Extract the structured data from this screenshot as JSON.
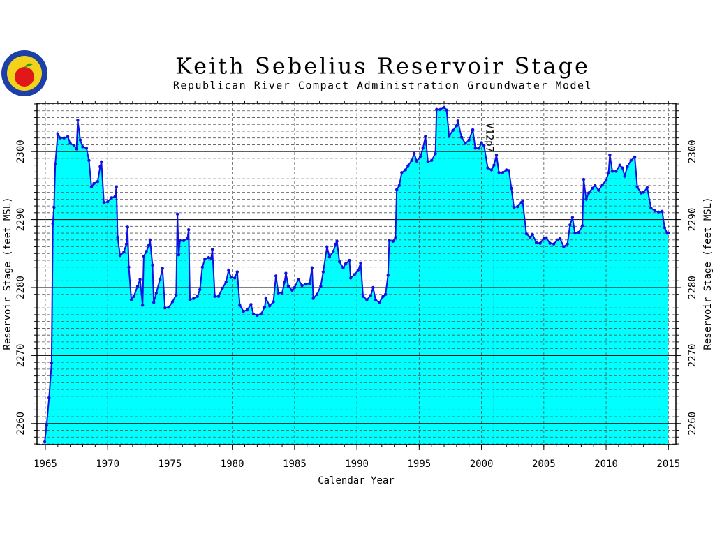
{
  "chart_data": {
    "type": "area",
    "title": "Keith Sebelius Reservoir Stage",
    "subtitle": "Republican River Compact Administration Groundwater Model",
    "x_label": "Calendar Year",
    "y_label": "Reservoir Stage (feet MSL)",
    "y2_label": "Reservoir Stage (feet MSL)",
    "xlim": [
      1964.33,
      2015.6
    ],
    "ylim": [
      2256.9,
      2307.1
    ],
    "y2lim": [
      2256.9,
      2307.1
    ],
    "xticks": [
      1965,
      1970,
      1975,
      1980,
      1985,
      1990,
      1995,
      2000,
      2005,
      2010,
      2015
    ],
    "yticks": [
      2260,
      2270,
      2280,
      2290,
      2300
    ],
    "y2ticks": [
      2260,
      2270,
      2280,
      2290,
      2300
    ],
    "x_minor_step": 1,
    "y_minor_step": 1,
    "grid": true,
    "vline": {
      "x": 2001,
      "label": "V12p7"
    },
    "series": [
      {
        "color": "#1010e0",
        "fill": "#00ffff",
        "x": [
          1964.95,
          1965.1,
          1965.3,
          1965.5,
          1965.6,
          1965.7,
          1965.8,
          1966.0,
          1966.2,
          1966.5,
          1966.8,
          1967.0,
          1967.3,
          1967.5,
          1967.6,
          1967.8,
          1968.0,
          1968.3,
          1968.5,
          1968.7,
          1968.9,
          1969.2,
          1969.4,
          1969.5,
          1969.7,
          1970.0,
          1970.3,
          1970.6,
          1970.7,
          1970.8,
          1971.0,
          1971.3,
          1971.5,
          1971.6,
          1971.7,
          1971.9,
          1972.1,
          1972.4,
          1972.6,
          1972.8,
          1972.9,
          1973.1,
          1973.3,
          1973.4,
          1973.6,
          1973.7,
          1973.9,
          1974.2,
          1974.4,
          1974.6,
          1974.9,
          1975.2,
          1975.5,
          1975.6,
          1975.7,
          1975.8,
          1976.1,
          1976.4,
          1976.5,
          1976.6,
          1976.9,
          1977.2,
          1977.4,
          1977.6,
          1977.8,
          1978.1,
          1978.3,
          1978.4,
          1978.6,
          1978.9,
          1979.2,
          1979.5,
          1979.7,
          1979.9,
          1980.2,
          1980.4,
          1980.6,
          1980.9,
          1981.2,
          1981.5,
          1981.7,
          1982.0,
          1982.3,
          1982.6,
          1982.7,
          1983.0,
          1983.3,
          1983.5,
          1983.7,
          1984.0,
          1984.2,
          1984.3,
          1984.5,
          1984.8,
          1985.0,
          1985.3,
          1985.6,
          1985.9,
          1986.2,
          1986.4,
          1986.5,
          1986.8,
          1987.1,
          1987.3,
          1987.6,
          1987.8,
          1988.1,
          1988.3,
          1988.4,
          1988.6,
          1988.9,
          1989.1,
          1989.4,
          1989.5,
          1989.8,
          1990.1,
          1990.3,
          1990.5,
          1990.8,
          1991.1,
          1991.3,
          1991.5,
          1991.8,
          1992.1,
          1992.3,
          1992.5,
          1992.6,
          1992.9,
          1993.1,
          1993.2,
          1993.4,
          1993.6,
          1993.9,
          1994.1,
          1994.4,
          1994.6,
          1994.8,
          1995.1,
          1995.3,
          1995.5,
          1995.7,
          1996.0,
          1996.3,
          1996.4,
          1996.7,
          1997.0,
          1997.2,
          1997.4,
          1997.7,
          1998.0,
          1998.1,
          1998.4,
          1998.7,
          1999.0,
          1999.3,
          1999.5,
          1999.8,
          2000.0,
          2000.2,
          2000.5,
          2000.8,
          2001.0,
          2001.2,
          2001.4,
          2001.7,
          2002.0,
          2002.2,
          2002.4,
          2002.6,
          2002.9,
          2003.2,
          2003.3,
          2003.6,
          2003.9,
          2004.1,
          2004.4,
          2004.7,
          2005.0,
          2005.2,
          2005.5,
          2005.8,
          2006.1,
          2006.3,
          2006.6,
          2006.9,
          2007.1,
          2007.3,
          2007.5,
          2007.8,
          2008.1,
          2008.2,
          2008.4,
          2008.6,
          2008.9,
          2009.1,
          2009.4,
          2009.7,
          2010.0,
          2010.2,
          2010.3,
          2010.5,
          2010.8,
          2011.1,
          2011.3,
          2011.5,
          2011.7,
          2012.0,
          2012.3,
          2012.5,
          2012.8,
          2013.0,
          2013.3,
          2013.6,
          2013.9,
          2014.2,
          2014.5,
          2014.7,
          2014.9,
          2015.0
        ],
        "values": [
          2257.3,
          2259.7,
          2263.8,
          2268.9,
          2289.4,
          2291.8,
          2298.2,
          2302.6,
          2302,
          2302,
          2302.2,
          2301.2,
          2300.9,
          2300.4,
          2304.6,
          2301.7,
          2300.7,
          2300.5,
          2298.7,
          2294.8,
          2295.3,
          2295.6,
          2297.8,
          2298.5,
          2292.5,
          2292.6,
          2293.2,
          2293.4,
          2294.8,
          2287.4,
          2284.7,
          2285.2,
          2286.4,
          2288.9,
          2283,
          2278.2,
          2278.7,
          2280.2,
          2281.2,
          2277.4,
          2284.6,
          2285.3,
          2286.2,
          2287,
          2283.3,
          2277.8,
          2279.2,
          2281.2,
          2282.8,
          2277,
          2277.1,
          2277.9,
          2278.9,
          2290.8,
          2284.8,
          2286.9,
          2286.9,
          2287.2,
          2288.5,
          2278.2,
          2278.4,
          2278.7,
          2279.7,
          2283,
          2284.2,
          2284.4,
          2284.3,
          2285.6,
          2278.7,
          2278.7,
          2279.9,
          2280.8,
          2282.5,
          2281.5,
          2281.4,
          2282.3,
          2277.4,
          2276.5,
          2276.7,
          2277.5,
          2276.1,
          2275.9,
          2276.1,
          2277.1,
          2278.4,
          2277.3,
          2277.9,
          2281.7,
          2279.2,
          2279.2,
          2280.8,
          2282.1,
          2280.2,
          2279.6,
          2280,
          2281.2,
          2280.3,
          2280.5,
          2280.6,
          2282.9,
          2278.4,
          2279,
          2280.2,
          2282.3,
          2286,
          2284.5,
          2285.3,
          2286.4,
          2286.8,
          2283.8,
          2282.9,
          2283.5,
          2284,
          2281.4,
          2281.9,
          2282.5,
          2283.6,
          2278.7,
          2278.2,
          2278.8,
          2280,
          2278.2,
          2277.8,
          2278.7,
          2279,
          2281.8,
          2286.9,
          2286.8,
          2287.4,
          2294.4,
          2295,
          2296.9,
          2297.3,
          2297.9,
          2298.7,
          2299.7,
          2298.6,
          2299.3,
          2300.5,
          2302.2,
          2298.5,
          2298.7,
          2299.7,
          2306.2,
          2306.2,
          2306.5,
          2306.1,
          2302.3,
          2303.1,
          2303.8,
          2304.5,
          2302.1,
          2301.2,
          2301.7,
          2303.2,
          2300.5,
          2300.5,
          2301.3,
          2300.9,
          2297.6,
          2297.3,
          2298,
          2299.5,
          2296.9,
          2296.9,
          2297.3,
          2297.2,
          2294.6,
          2291.8,
          2291.9,
          2292.5,
          2292.7,
          2287.9,
          2287.4,
          2287.8,
          2286.6,
          2286.5,
          2287.2,
          2287.3,
          2286.5,
          2286.4,
          2287,
          2287.2,
          2286,
          2286.4,
          2289.2,
          2290.3,
          2288,
          2288.1,
          2289.1,
          2295.9,
          2293,
          2293.9,
          2294.6,
          2295,
          2294.3,
          2295.1,
          2295.8,
          2296.9,
          2299.5,
          2297.1,
          2297.1,
          2298,
          2297.6,
          2296.4,
          2297.8,
          2298.7,
          2299.2,
          2294.8,
          2293.9,
          2294,
          2294.7,
          2291.7,
          2291.3,
          2291.1,
          2291.2,
          2288.8,
          2288,
          2288
        ]
      }
    ]
  }
}
